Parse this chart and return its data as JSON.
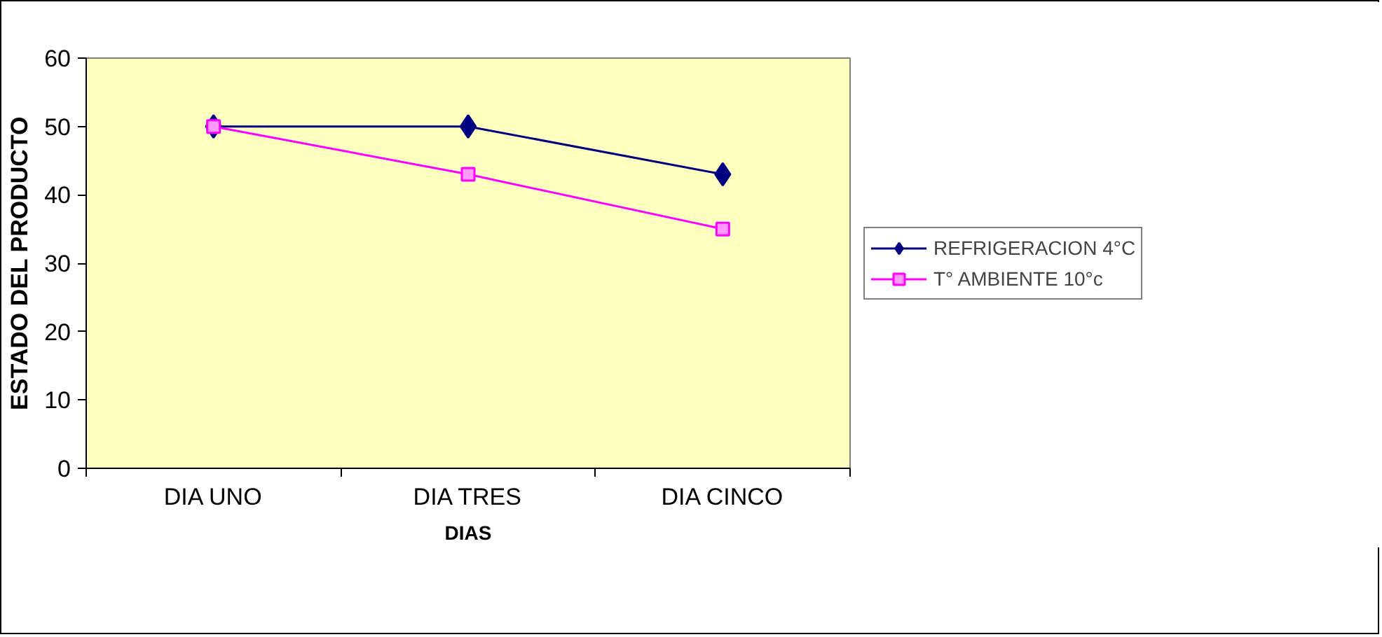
{
  "chart_data": {
    "type": "line",
    "xlabel": "DIAS",
    "ylabel": "ESTADO DEL PRODUCTO",
    "categories": [
      "DIA UNO",
      "DIA TRES",
      "DIA CINCO"
    ],
    "series": [
      {
        "name": "REFRIGERACION 4°C",
        "color": "#000080",
        "values": [
          50,
          50,
          43
        ],
        "marker": "diamond"
      },
      {
        "name": "T° AMBIENTE 10°c",
        "color": "#ff00ff",
        "values": [
          50,
          43,
          35
        ],
        "marker": "square"
      }
    ],
    "ylim": [
      0,
      60
    ],
    "yticks": [
      0,
      10,
      20,
      30,
      40,
      50,
      60
    ],
    "grid": false,
    "legend": "right",
    "line_style": "solid"
  }
}
